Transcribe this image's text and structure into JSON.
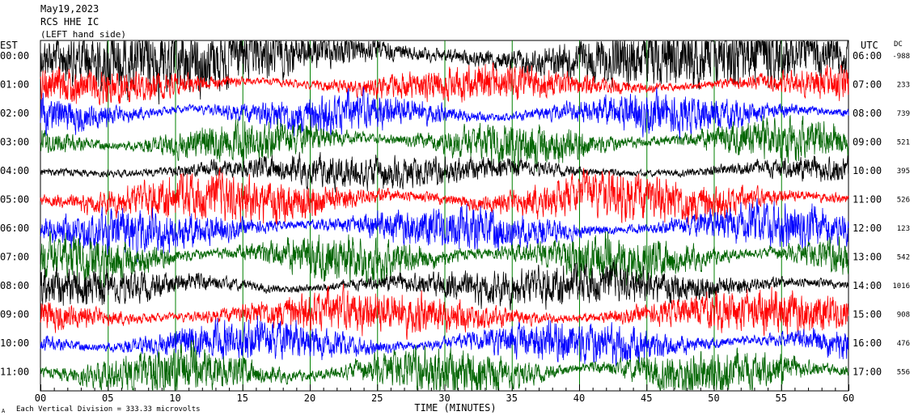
{
  "header": {
    "line1": "May19,2023",
    "line2": "RCS HHE IC",
    "line3": "(LEFT hand side)"
  },
  "left_axis_label": "EST",
  "right_axis_label": "UTC",
  "dc_label": "DC",
  "footer": {
    "scale_text": "Each Vertical Division =  333.33 microvolts",
    "x_axis_title": "TIME (MINUTES)",
    "corner_mark": "A"
  },
  "colors": {
    "black": "#000000",
    "red": "#ff0000",
    "blue": "#0000ff",
    "green": "#006400",
    "grid": "#008000"
  },
  "chart_data": {
    "type": "line",
    "title": "May19,2023",
    "xlabel": "TIME (MINUTES)",
    "ylabel": "",
    "xlim": [
      0,
      60
    ],
    "x_ticks": [
      "00",
      "05",
      "10",
      "15",
      "20",
      "25",
      "30",
      "35",
      "40",
      "45",
      "50",
      "55",
      "60"
    ],
    "grid": true,
    "traces": [
      {
        "est": "00:00",
        "utc": "06:00",
        "dc": "-988",
        "color": "black",
        "amplitude": 0.85
      },
      {
        "est": "01:00",
        "utc": "07:00",
        "dc": "233",
        "color": "red",
        "amplitude": 0.45
      },
      {
        "est": "02:00",
        "utc": "08:00",
        "dc": "739",
        "color": "blue",
        "amplitude": 0.5
      },
      {
        "est": "03:00",
        "utc": "09:00",
        "dc": "521",
        "color": "green",
        "amplitude": 0.55
      },
      {
        "est": "04:00",
        "utc": "10:00",
        "dc": "395",
        "color": "black",
        "amplitude": 0.4
      },
      {
        "est": "05:00",
        "utc": "11:00",
        "dc": "526",
        "color": "red",
        "amplitude": 0.6
      },
      {
        "est": "06:00",
        "utc": "12:00",
        "dc": "123",
        "color": "blue",
        "amplitude": 0.55
      },
      {
        "est": "07:00",
        "utc": "13:00",
        "dc": "542",
        "color": "green",
        "amplitude": 0.6
      },
      {
        "est": "08:00",
        "utc": "14:00",
        "dc": "1016",
        "color": "black",
        "amplitude": 0.5
      },
      {
        "est": "09:00",
        "utc": "15:00",
        "dc": "908",
        "color": "red",
        "amplitude": 0.55
      },
      {
        "est": "10:00",
        "utc": "16:00",
        "dc": "476",
        "color": "blue",
        "amplitude": 0.55
      },
      {
        "est": "11:00",
        "utc": "17:00",
        "dc": "556",
        "color": "green",
        "amplitude": 0.6
      }
    ]
  }
}
